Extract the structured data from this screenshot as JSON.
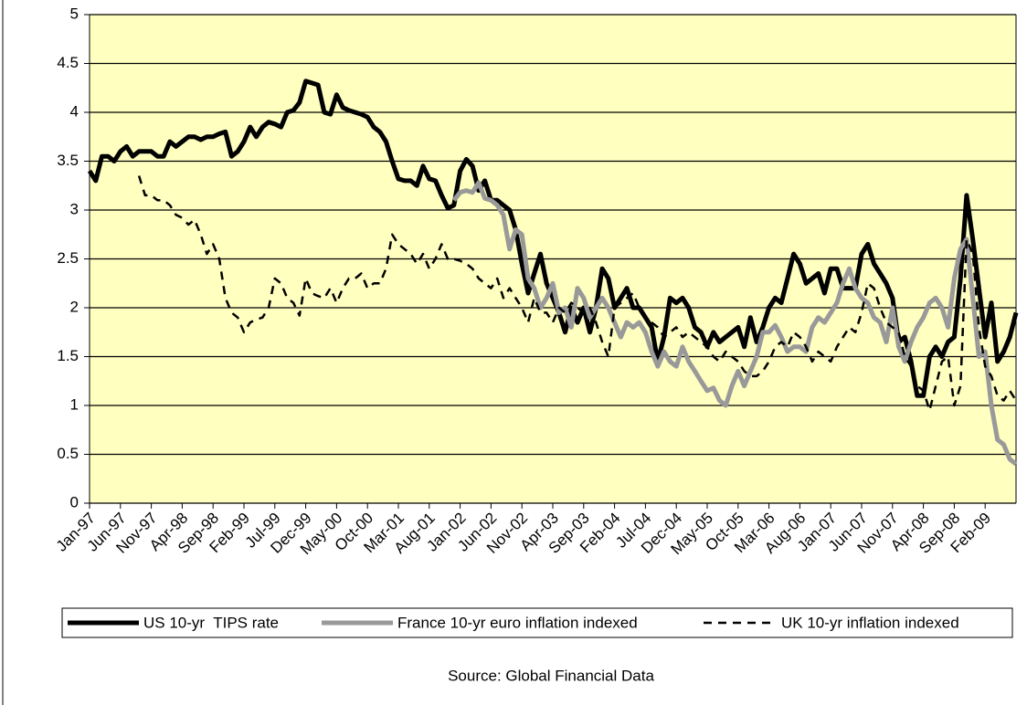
{
  "chart_data": {
    "type": "line",
    "source": "Source: Global Financial Data",
    "categories": [
      "Jan-97",
      null,
      null,
      null,
      null,
      "Jun-97",
      null,
      null,
      null,
      null,
      "Nov-97",
      null,
      null,
      null,
      null,
      "Apr-98",
      null,
      null,
      null,
      null,
      "Sep-98",
      null,
      null,
      null,
      null,
      "Feb-99",
      null,
      null,
      null,
      null,
      "Jul-99",
      null,
      null,
      null,
      null,
      "Dec-99",
      null,
      null,
      null,
      null,
      "May-00",
      null,
      null,
      null,
      null,
      "Oct-00",
      null,
      null,
      null,
      null,
      "Mar-01",
      null,
      null,
      null,
      null,
      "Aug-01",
      null,
      null,
      null,
      null,
      "Jan-02",
      null,
      null,
      null,
      null,
      "Jun-02",
      null,
      null,
      null,
      null,
      "Nov-02",
      null,
      null,
      null,
      null,
      "Apr-03",
      null,
      null,
      null,
      null,
      "Sep-03",
      null,
      null,
      null,
      null,
      "Feb-04",
      null,
      null,
      null,
      null,
      "Jul-04",
      null,
      null,
      null,
      null,
      "Dec-04",
      null,
      null,
      null,
      null,
      "May-05",
      null,
      null,
      null,
      null,
      "Oct-05",
      null,
      null,
      null,
      null,
      "Mar-06",
      null,
      null,
      null,
      null,
      "Aug-06",
      null,
      null,
      null,
      null,
      "Jan-07",
      null,
      null,
      null,
      null,
      "Jun-07",
      null,
      null,
      null,
      null,
      "Nov-07",
      null,
      null,
      null,
      null,
      "Apr-08",
      null,
      null,
      null,
      null,
      "Sep-08",
      null,
      null,
      null,
      null,
      "Feb-09",
      null,
      null,
      null,
      null,
      null
    ],
    "series": [
      {
        "name": "US 10-yr  TIPS rate",
        "color": "#000000",
        "style": "solid",
        "values": [
          3.4,
          3.3,
          3.55,
          3.55,
          3.5,
          3.6,
          3.65,
          3.55,
          3.6,
          3.6,
          3.6,
          3.55,
          3.55,
          3.7,
          3.65,
          3.7,
          3.75,
          3.75,
          3.72,
          3.75,
          3.75,
          3.78,
          3.8,
          3.55,
          3.6,
          3.7,
          3.85,
          3.75,
          3.85,
          3.9,
          3.88,
          3.85,
          4.0,
          4.02,
          4.1,
          4.32,
          4.3,
          4.28,
          4.0,
          3.98,
          4.18,
          4.05,
          4.02,
          4.0,
          3.98,
          3.95,
          3.85,
          3.8,
          3.7,
          3.5,
          3.32,
          3.3,
          3.3,
          3.25,
          3.45,
          3.32,
          3.3,
          3.15,
          3.02,
          3.05,
          3.4,
          3.52,
          3.45,
          3.2,
          3.3,
          3.1,
          3.1,
          3.05,
          3.0,
          2.8,
          2.45,
          2.15,
          2.35,
          2.55,
          2.25,
          2.1,
          1.95,
          1.75,
          2.0,
          1.85,
          2.0,
          1.75,
          2.0,
          2.4,
          2.3,
          2.0,
          2.1,
          2.2,
          2.0,
          2.0,
          1.9,
          1.8,
          1.45,
          1.7,
          2.1,
          2.05,
          2.1,
          2.0,
          1.8,
          1.75,
          1.6,
          1.75,
          1.65,
          1.7,
          1.75,
          1.8,
          1.6,
          1.9,
          1.65,
          1.8,
          2.0,
          2.1,
          2.05,
          2.3,
          2.55,
          2.45,
          2.25,
          2.3,
          2.35,
          2.15,
          2.4,
          2.4,
          2.2,
          2.2,
          2.2,
          2.55,
          2.65,
          2.45,
          2.35,
          2.25,
          2.1,
          1.65,
          1.7,
          1.45,
          1.1,
          1.1,
          1.5,
          1.6,
          1.5,
          1.65,
          1.7,
          2.3,
          3.15,
          2.7,
          2.2,
          1.7,
          2.05,
          1.45,
          1.55,
          1.7,
          1.95
        ]
      },
      {
        "name": "France 10-yr euro inflation indexed",
        "color": "#999999",
        "style": "solid",
        "values": [
          null,
          null,
          null,
          null,
          null,
          null,
          null,
          null,
          null,
          null,
          null,
          null,
          null,
          null,
          null,
          null,
          null,
          null,
          null,
          null,
          null,
          null,
          null,
          null,
          null,
          null,
          null,
          null,
          null,
          null,
          null,
          null,
          null,
          null,
          null,
          null,
          null,
          null,
          null,
          null,
          null,
          null,
          null,
          null,
          null,
          null,
          null,
          null,
          null,
          null,
          null,
          null,
          null,
          null,
          null,
          null,
          null,
          null,
          null,
          3.1,
          3.18,
          3.2,
          3.18,
          3.28,
          3.12,
          3.1,
          3.05,
          2.95,
          2.6,
          2.8,
          2.75,
          2.3,
          2.2,
          2.0,
          2.1,
          2.25,
          1.95,
          2.0,
          1.8,
          2.2,
          2.1,
          1.9,
          2.0,
          2.1,
          2.0,
          1.85,
          1.7,
          1.85,
          1.8,
          1.85,
          1.75,
          1.55,
          1.4,
          1.55,
          1.45,
          1.4,
          1.6,
          1.45,
          1.35,
          1.25,
          1.15,
          1.18,
          1.05,
          1.0,
          1.2,
          1.35,
          1.2,
          1.35,
          1.5,
          1.75,
          1.75,
          1.82,
          1.7,
          1.55,
          1.6,
          1.6,
          1.55,
          1.8,
          1.9,
          1.85,
          1.95,
          2.05,
          2.25,
          2.4,
          2.2,
          2.1,
          2.05,
          1.9,
          1.85,
          1.65,
          2.0,
          1.6,
          1.45,
          1.65,
          1.8,
          1.9,
          2.05,
          2.1,
          2.0,
          1.8,
          2.3,
          2.6,
          2.7,
          2.1,
          1.5,
          1.55,
          1.0,
          0.65,
          0.6,
          0.45,
          0.4
        ]
      },
      {
        "name": "UK 10-yr inflation indexed",
        "color": "#000000",
        "style": "dashed",
        "values": [
          null,
          null,
          null,
          null,
          null,
          null,
          null,
          null,
          3.35,
          3.15,
          3.15,
          3.1,
          3.1,
          3.05,
          2.95,
          2.92,
          2.85,
          2.9,
          2.75,
          2.55,
          2.65,
          2.5,
          2.1,
          1.95,
          1.9,
          1.75,
          1.85,
          1.88,
          1.9,
          2.0,
          2.3,
          2.25,
          2.1,
          2.05,
          1.92,
          2.3,
          2.15,
          2.12,
          2.1,
          2.2,
          2.05,
          2.2,
          2.3,
          2.3,
          2.35,
          2.2,
          2.25,
          2.25,
          2.4,
          2.75,
          2.65,
          2.6,
          2.55,
          2.45,
          2.55,
          2.4,
          2.5,
          2.65,
          2.5,
          2.5,
          2.48,
          2.45,
          2.4,
          2.3,
          2.25,
          2.2,
          2.3,
          2.1,
          2.2,
          2.1,
          2.0,
          1.85,
          2.1,
          1.95,
          1.95,
          1.85,
          2.0,
          1.95,
          2.05,
          2.0,
          1.95,
          2.0,
          1.85,
          1.65,
          1.5,
          2.0,
          2.05,
          2.1,
          2.15,
          2.0,
          1.9,
          1.85,
          1.8,
          1.7,
          1.75,
          1.8,
          1.7,
          1.75,
          1.7,
          1.65,
          1.6,
          1.5,
          1.45,
          1.55,
          1.5,
          1.45,
          1.35,
          1.3,
          1.3,
          1.35,
          1.45,
          1.6,
          1.65,
          1.6,
          1.75,
          1.7,
          1.6,
          1.45,
          1.55,
          1.5,
          1.45,
          1.6,
          1.7,
          1.8,
          1.75,
          1.95,
          2.25,
          2.2,
          2.0,
          1.85,
          1.8,
          1.75,
          1.5,
          1.4,
          1.2,
          1.15,
          0.95,
          1.2,
          1.45,
          1.5,
          1.0,
          1.2,
          2.7,
          2.55,
          1.8,
          1.4,
          1.3,
          1.1,
          1.05,
          1.15,
          1.05
        ]
      }
    ],
    "ylim": [
      0,
      5
    ],
    "yticks": [
      0,
      0.5,
      1,
      1.5,
      2,
      2.5,
      3,
      3.5,
      4,
      4.5,
      5
    ],
    "grid": true,
    "plot_background": "#ffffc0"
  }
}
